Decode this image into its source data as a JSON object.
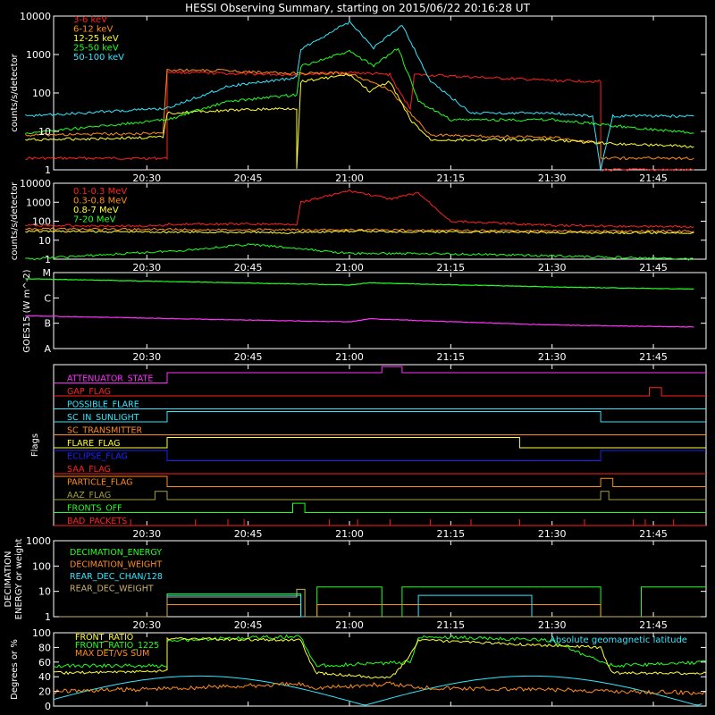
{
  "title": "HESSI Observing Summary, starting on 2015/06/22 20:16:28 UT",
  "colors": {
    "white": "#ffffff",
    "red": "#ff2020",
    "orange": "#ff8c1a",
    "yellow": "#ffff30",
    "green": "#20ff20",
    "cyan": "#30e8ff",
    "magenta": "#ff30ff",
    "blue": "#2020ff",
    "olive": "#a0a040",
    "purple": "#c040ff",
    "tan": "#c8b070"
  },
  "time_ticks": [
    "20:30",
    "20:45",
    "21:00",
    "21:15",
    "21:30",
    "21:45"
  ],
  "chart_data": [
    {
      "type": "line",
      "id": "lightcurves",
      "scale": "log",
      "ylabel": "counts/s/detector",
      "ytick_labels": [
        "1",
        "10",
        "100",
        "1000",
        "10000"
      ],
      "ylim": [
        1,
        10000
      ],
      "series": [
        {
          "name": "3-6 keV",
          "color": "red",
          "points": [
            [
              20.2,
              2
            ],
            [
              20.55,
              2
            ],
            [
              20.55,
              3
            ],
            [
              20.55,
              350
            ],
            [
              20.7,
              320
            ],
            [
              20.85,
              300
            ],
            [
              21.0,
              340
            ],
            [
              21.1,
              300
            ],
            [
              21.12,
              120
            ],
            [
              21.15,
              40
            ],
            [
              21.16,
              300
            ],
            [
              21.3,
              260
            ],
            [
              21.5,
              210
            ],
            [
              21.62,
              200
            ],
            [
              21.62,
              1
            ],
            [
              21.85,
              1
            ]
          ]
        },
        {
          "name": "6-12 keV",
          "color": "orange",
          "points": [
            [
              20.2,
              8
            ],
            [
              20.54,
              9
            ],
            [
              20.55,
              400
            ],
            [
              20.7,
              380
            ],
            [
              20.85,
              320
            ],
            [
              21.0,
              330
            ],
            [
              21.1,
              120
            ],
            [
              21.15,
              30
            ],
            [
              21.2,
              8
            ],
            [
              21.5,
              7
            ],
            [
              21.62,
              5
            ],
            [
              21.62,
              2
            ],
            [
              21.85,
              2
            ]
          ]
        },
        {
          "name": "12-25 keV",
          "color": "yellow",
          "points": [
            [
              20.2,
              6
            ],
            [
              20.54,
              7
            ],
            [
              20.55,
              30
            ],
            [
              20.7,
              35
            ],
            [
              20.87,
              40
            ],
            [
              20.87,
              1
            ],
            [
              20.88,
              200
            ],
            [
              21.0,
              300
            ],
            [
              21.05,
              110
            ],
            [
              21.1,
              200
            ],
            [
              21.15,
              20
            ],
            [
              21.2,
              6
            ],
            [
              21.5,
              6
            ],
            [
              21.62,
              5
            ],
            [
              21.85,
              4
            ]
          ]
        },
        {
          "name": "25-50 keV",
          "color": "green",
          "points": [
            [
              20.2,
              9
            ],
            [
              20.55,
              20
            ],
            [
              20.7,
              60
            ],
            [
              20.87,
              90
            ],
            [
              20.88,
              500
            ],
            [
              21.0,
              1200
            ],
            [
              21.06,
              500
            ],
            [
              21.12,
              1500
            ],
            [
              21.17,
              60
            ],
            [
              21.25,
              20
            ],
            [
              21.5,
              20
            ],
            [
              21.62,
              15
            ],
            [
              21.85,
              9
            ]
          ]
        },
        {
          "name": "50-100 keV",
          "color": "cyan",
          "points": [
            [
              20.2,
              25
            ],
            [
              20.55,
              40
            ],
            [
              20.7,
              150
            ],
            [
              20.87,
              250
            ],
            [
              20.88,
              1400
            ],
            [
              21.0,
              7000
            ],
            [
              21.06,
              1500
            ],
            [
              21.13,
              6000
            ],
            [
              21.2,
              200
            ],
            [
              21.3,
              30
            ],
            [
              21.5,
              30
            ],
            [
              21.6,
              25
            ],
            [
              21.62,
              1
            ],
            [
              21.65,
              25
            ],
            [
              21.85,
              25
            ]
          ]
        }
      ]
    },
    {
      "type": "line",
      "id": "mev",
      "scale": "log",
      "ylabel": "counts/s/detector",
      "ytick_labels": [
        "1",
        "10",
        "100",
        "1000",
        "10000"
      ],
      "ylim": [
        1,
        10000
      ],
      "series": [
        {
          "name": "0.1-0.3 MeV",
          "color": "red",
          "points": [
            [
              20.2,
              60
            ],
            [
              20.54,
              55
            ],
            [
              20.55,
              70
            ],
            [
              20.87,
              70
            ],
            [
              20.88,
              1000
            ],
            [
              21.0,
              4000
            ],
            [
              21.1,
              1500
            ],
            [
              21.17,
              3000
            ],
            [
              21.25,
              100
            ],
            [
              21.5,
              60
            ],
            [
              21.85,
              50
            ]
          ]
        },
        {
          "name": "0.3-0.8 MeV",
          "color": "orange",
          "points": [
            [
              20.2,
              40
            ],
            [
              20.85,
              35
            ],
            [
              21.0,
              35
            ],
            [
              21.5,
              30
            ],
            [
              21.85,
              30
            ]
          ]
        },
        {
          "name": "0.8-7 MeV",
          "color": "yellow",
          "points": [
            [
              20.2,
              30
            ],
            [
              20.85,
              25
            ],
            [
              21.0,
              30
            ],
            [
              21.5,
              25
            ],
            [
              21.85,
              25
            ]
          ]
        },
        {
          "name": "7-20 MeV",
          "color": "green",
          "points": [
            [
              20.2,
              1
            ],
            [
              20.6,
              3
            ],
            [
              20.75,
              6
            ],
            [
              20.85,
              4
            ],
            [
              21.0,
              2
            ],
            [
              21.2,
              2
            ],
            [
              21.5,
              1.5
            ],
            [
              21.85,
              1
            ]
          ]
        }
      ]
    },
    {
      "type": "line",
      "id": "goes",
      "scale": "log",
      "ylabel": "GOES15 (W m^-2)",
      "ytick_labels": [
        "A",
        "B",
        "C",
        "M"
      ],
      "series": [
        {
          "name": "GOES long",
          "color": "green",
          "points": [
            [
              20.2,
              3.7
            ],
            [
              21.0,
              3.4
            ],
            [
              21.05,
              3.5
            ],
            [
              21.5,
              3.3
            ],
            [
              21.85,
              3.2
            ]
          ]
        },
        {
          "name": "GOES short",
          "color": "magenta",
          "points": [
            [
              20.2,
              1.9
            ],
            [
              21.0,
              1.6
            ],
            [
              21.05,
              1.75
            ],
            [
              21.5,
              1.45
            ],
            [
              21.85,
              1.35
            ]
          ]
        }
      ]
    },
    {
      "type": "line",
      "id": "flags",
      "ylabel": "Flags",
      "series": [
        {
          "name": "ATTENUATOR_STATE",
          "color": "magenta"
        },
        {
          "name": "GAP_FLAG",
          "color": "red"
        },
        {
          "name": "POSSIBLE_FLARE",
          "color": "cyan"
        },
        {
          "name": "SC_IN_SUNLIGHT",
          "color": "cyan"
        },
        {
          "name": "SC_TRANSMITTER",
          "color": "orange"
        },
        {
          "name": "FLARE_FLAG",
          "color": "yellow"
        },
        {
          "name": "ECLIPSE_FLAG",
          "color": "blue"
        },
        {
          "name": "SAA_FLAG",
          "color": "red"
        },
        {
          "name": "PARTICLE_FLAG",
          "color": "orange"
        },
        {
          "name": "AAZ_FLAG",
          "color": "olive"
        },
        {
          "name": "FRONTS_OFF",
          "color": "green"
        },
        {
          "name": "BAD_PACKETS",
          "color": "red"
        }
      ]
    },
    {
      "type": "line",
      "id": "decimation",
      "scale": "log",
      "ylabel": "DECIMATION ENERGY or weight",
      "ytick_labels": [
        "1",
        "10",
        "100",
        "1000"
      ],
      "ylim": [
        1,
        1000
      ],
      "series": [
        {
          "name": "DECIMATION_ENERGY",
          "color": "green"
        },
        {
          "name": "DECIMATION_WEIGHT",
          "color": "orange"
        },
        {
          "name": "REAR_DEC_CHAN/128",
          "color": "cyan"
        },
        {
          "name": "REAR_DEC_WEIGHT",
          "color": "tan"
        }
      ]
    },
    {
      "type": "line",
      "id": "ratios",
      "ylabel": "Degrees or %",
      "ytick_labels": [
        "0",
        "20",
        "40",
        "60",
        "80",
        "100"
      ],
      "ylim": [
        0,
        100
      ],
      "series": [
        {
          "name": "FRONT_RATIO",
          "color": "yellow"
        },
        {
          "name": "FRONT_RATIO_1225",
          "color": "green"
        },
        {
          "name": "MAX DET/VS SUM",
          "color": "orange"
        },
        {
          "name": "Absolute geomagnetic latitude",
          "color": "cyan"
        }
      ]
    }
  ]
}
